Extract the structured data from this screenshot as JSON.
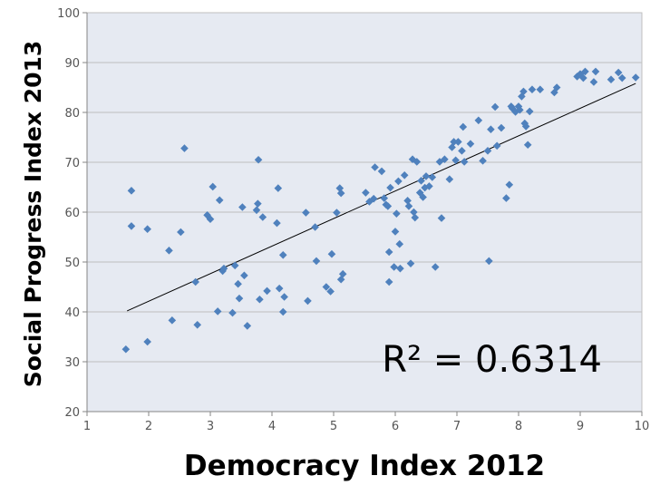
{
  "chart_data": {
    "type": "scatter",
    "title": "",
    "xlabel": "Democracy Index 2012",
    "ylabel": "Social Progress Index  2013",
    "xlim": [
      1,
      10
    ],
    "ylim": [
      20,
      100
    ],
    "x_ticks": [
      1,
      2,
      3,
      4,
      5,
      6,
      7,
      8,
      9,
      10
    ],
    "y_ticks": [
      20,
      30,
      40,
      50,
      60,
      70,
      80,
      90,
      100
    ],
    "grid": "horizontal",
    "annotation": "R² = 0.6314",
    "trendline": {
      "x1": 1.65,
      "y1": 40.2,
      "x2": 9.9,
      "y2": 85.8
    },
    "colors": {
      "point": "#4F81BD",
      "plot_bg": "#E6EAF2",
      "grid": "#BFBFBF",
      "trend": "#000000"
    },
    "points": [
      [
        1.63,
        32.5
      ],
      [
        1.72,
        64.3
      ],
      [
        1.72,
        57.2
      ],
      [
        1.98,
        34.0
      ],
      [
        1.98,
        56.6
      ],
      [
        2.33,
        52.3
      ],
      [
        2.38,
        38.3
      ],
      [
        2.52,
        56.0
      ],
      [
        2.58,
        72.8
      ],
      [
        2.76,
        46.0
      ],
      [
        2.79,
        37.4
      ],
      [
        2.95,
        59.4
      ],
      [
        3.0,
        58.6
      ],
      [
        3.04,
        65.1
      ],
      [
        3.12,
        40.1
      ],
      [
        3.15,
        62.4
      ],
      [
        3.2,
        48.2
      ],
      [
        3.22,
        48.7
      ],
      [
        3.36,
        39.8
      ],
      [
        3.4,
        49.3
      ],
      [
        3.45,
        45.6
      ],
      [
        3.47,
        42.7
      ],
      [
        3.52,
        61.0
      ],
      [
        3.55,
        47.3
      ],
      [
        3.6,
        37.2
      ],
      [
        3.75,
        60.4
      ],
      [
        3.77,
        61.7
      ],
      [
        3.78,
        70.5
      ],
      [
        3.8,
        42.5
      ],
      [
        3.85,
        59.0
      ],
      [
        3.92,
        44.2
      ],
      [
        4.08,
        57.8
      ],
      [
        4.1,
        64.8
      ],
      [
        4.12,
        44.7
      ],
      [
        4.18,
        40.0
      ],
      [
        4.2,
        43.0
      ],
      [
        4.18,
        51.4
      ],
      [
        4.55,
        59.9
      ],
      [
        4.58,
        42.2
      ],
      [
        4.7,
        57.0
      ],
      [
        4.72,
        50.2
      ],
      [
        4.88,
        45.0
      ],
      [
        4.95,
        44.1
      ],
      [
        4.97,
        51.6
      ],
      [
        5.05,
        59.9
      ],
      [
        5.1,
        64.8
      ],
      [
        5.12,
        63.8
      ],
      [
        5.12,
        46.5
      ],
      [
        5.15,
        47.6
      ],
      [
        5.52,
        63.9
      ],
      [
        5.58,
        62.1
      ],
      [
        5.65,
        62.7
      ],
      [
        5.67,
        69.0
      ],
      [
        5.78,
        68.2
      ],
      [
        5.85,
        61.5
      ],
      [
        5.82,
        62.8
      ],
      [
        5.88,
        61.2
      ],
      [
        5.9,
        52.0
      ],
      [
        5.9,
        46.0
      ],
      [
        5.92,
        64.9
      ],
      [
        6.0,
        56.1
      ],
      [
        5.98,
        49.0
      ],
      [
        6.02,
        59.7
      ],
      [
        6.05,
        66.2
      ],
      [
        6.07,
        53.6
      ],
      [
        6.08,
        48.7
      ],
      [
        6.15,
        67.4
      ],
      [
        6.2,
        62.3
      ],
      [
        6.22,
        61.2
      ],
      [
        6.25,
        49.7
      ],
      [
        6.28,
        70.6
      ],
      [
        6.3,
        60.0
      ],
      [
        6.32,
        58.9
      ],
      [
        6.35,
        70.1
      ],
      [
        6.4,
        63.9
      ],
      [
        6.42,
        66.3
      ],
      [
        6.45,
        63.0
      ],
      [
        6.48,
        64.9
      ],
      [
        6.5,
        67.2
      ],
      [
        6.55,
        65.2
      ],
      [
        6.6,
        67.0
      ],
      [
        6.65,
        49.0
      ],
      [
        6.72,
        70.1
      ],
      [
        6.75,
        58.8
      ],
      [
        6.8,
        70.6
      ],
      [
        6.88,
        66.6
      ],
      [
        6.92,
        73.0
      ],
      [
        6.95,
        74.1
      ],
      [
        6.98,
        70.4
      ],
      [
        7.02,
        74.1
      ],
      [
        7.08,
        72.3
      ],
      [
        7.1,
        77.1
      ],
      [
        7.12,
        70.1
      ],
      [
        7.22,
        73.7
      ],
      [
        7.35,
        78.4
      ],
      [
        7.42,
        70.3
      ],
      [
        7.52,
        50.2
      ],
      [
        7.5,
        72.3
      ],
      [
        7.55,
        76.6
      ],
      [
        7.62,
        81.1
      ],
      [
        7.65,
        73.3
      ],
      [
        7.72,
        76.9
      ],
      [
        7.8,
        62.8
      ],
      [
        7.85,
        65.5
      ],
      [
        7.88,
        81.2
      ],
      [
        7.9,
        80.8
      ],
      [
        7.95,
        80.1
      ],
      [
        8.0,
        81.2
      ],
      [
        8.02,
        80.5
      ],
      [
        8.05,
        83.2
      ],
      [
        8.08,
        84.2
      ],
      [
        8.1,
        77.8
      ],
      [
        8.12,
        77.2
      ],
      [
        8.15,
        73.5
      ],
      [
        8.18,
        80.2
      ],
      [
        8.22,
        84.6
      ],
      [
        8.35,
        84.6
      ],
      [
        8.58,
        84.0
      ],
      [
        8.62,
        85.0
      ],
      [
        8.95,
        87.2
      ],
      [
        9.0,
        87.7
      ],
      [
        9.05,
        86.9
      ],
      [
        9.08,
        88.2
      ],
      [
        9.22,
        86.1
      ],
      [
        9.25,
        88.2
      ],
      [
        9.5,
        86.6
      ],
      [
        9.62,
        88.0
      ],
      [
        9.68,
        86.9
      ],
      [
        9.9,
        87.0
      ]
    ]
  }
}
